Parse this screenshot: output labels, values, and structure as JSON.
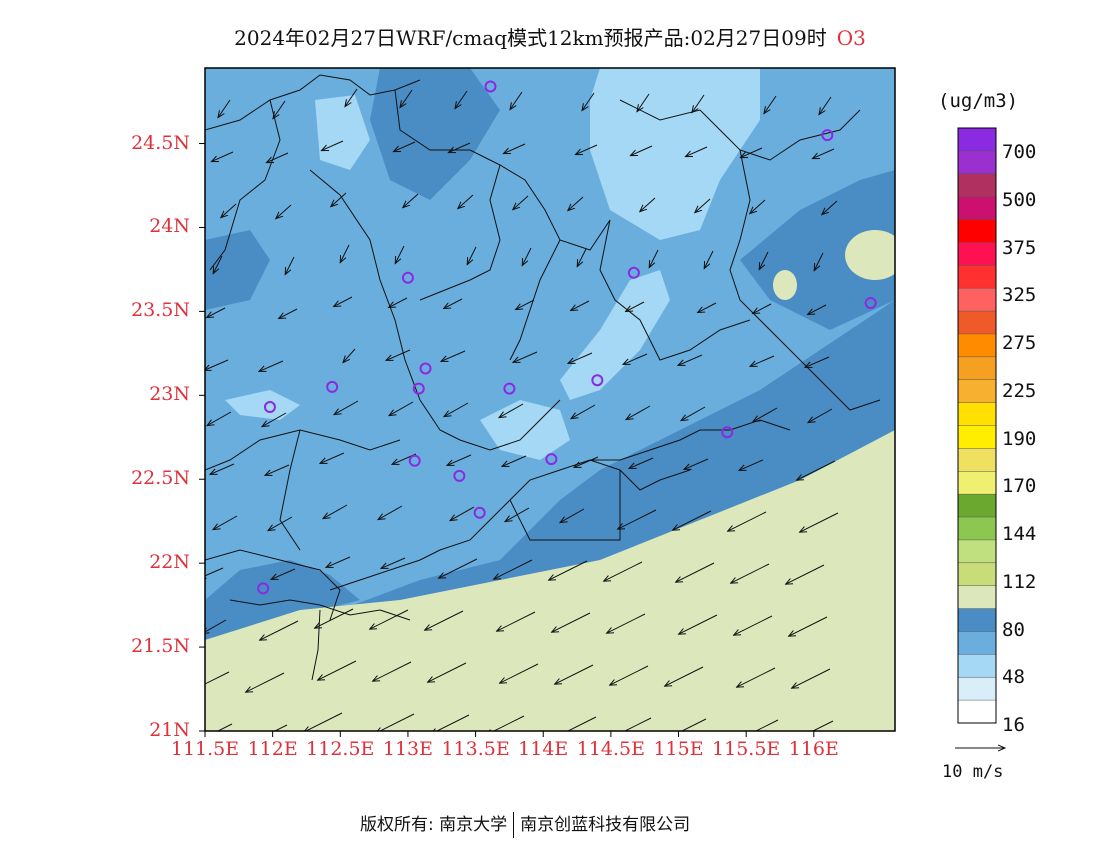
{
  "header": {
    "title": "2024年02月27日WRF/cmaq模式12km预报产品:02月27日09时",
    "species": "O3"
  },
  "map": {
    "lat_labels": [
      "24.5N",
      "24N",
      "23.5N",
      "23N",
      "22.5N",
      "22N",
      "21.5N",
      "21N"
    ],
    "lon_labels": [
      "111.5E",
      "112E",
      "112.5E",
      "113E",
      "113.5E",
      "114E",
      "114.5E",
      "115E",
      "115.5E",
      "116E"
    ],
    "extent": {
      "lon": [
        111.5,
        116.6
      ],
      "lat": [
        21.0,
        24.95
      ]
    }
  },
  "colorbar": {
    "units": "(ug/m3)",
    "labels": [
      "700",
      "500",
      "375",
      "325",
      "275",
      "225",
      "190",
      "170",
      "144",
      "112",
      "80",
      "48",
      "16"
    ],
    "colors": [
      "#8a2be2",
      "#9b30d0",
      "#b03060",
      "#cc1070",
      "#ff0000",
      "#ff1050",
      "#ff3030",
      "#ff6060",
      "#f05a28",
      "#ff8c00",
      "#f5a020",
      "#f7b030",
      "#ffe000",
      "#ffee00",
      "#f0e060",
      "#f0f070",
      "#6aa830",
      "#8cc850",
      "#c0e080",
      "#c8dc78",
      "#dce8bc",
      "#4a8cc4",
      "#6aaede",
      "#a4d8f4",
      "#d8eef8",
      "#ffffff"
    ]
  },
  "wind_reference": {
    "label": "10 m/s"
  },
  "footer": {
    "left": "版权所有: 南京大学",
    "right": "南京创蓝科技有限公司"
  },
  "stations": [
    {
      "lon": 113.61,
      "lat": 24.84
    },
    {
      "lon": 116.1,
      "lat": 24.55
    },
    {
      "lon": 113.0,
      "lat": 23.7
    },
    {
      "lon": 114.67,
      "lat": 23.73
    },
    {
      "lon": 116.42,
      "lat": 23.55
    },
    {
      "lon": 113.13,
      "lat": 23.16
    },
    {
      "lon": 112.44,
      "lat": 23.05
    },
    {
      "lon": 113.08,
      "lat": 23.04
    },
    {
      "lon": 113.75,
      "lat": 23.04
    },
    {
      "lon": 114.4,
      "lat": 23.09
    },
    {
      "lon": 111.98,
      "lat": 22.93
    },
    {
      "lon": 115.36,
      "lat": 22.78
    },
    {
      "lon": 113.05,
      "lat": 22.61
    },
    {
      "lon": 113.38,
      "lat": 22.52
    },
    {
      "lon": 114.06,
      "lat": 22.62
    },
    {
      "lon": 113.53,
      "lat": 22.3
    },
    {
      "lon": 111.93,
      "lat": 21.85
    }
  ]
}
